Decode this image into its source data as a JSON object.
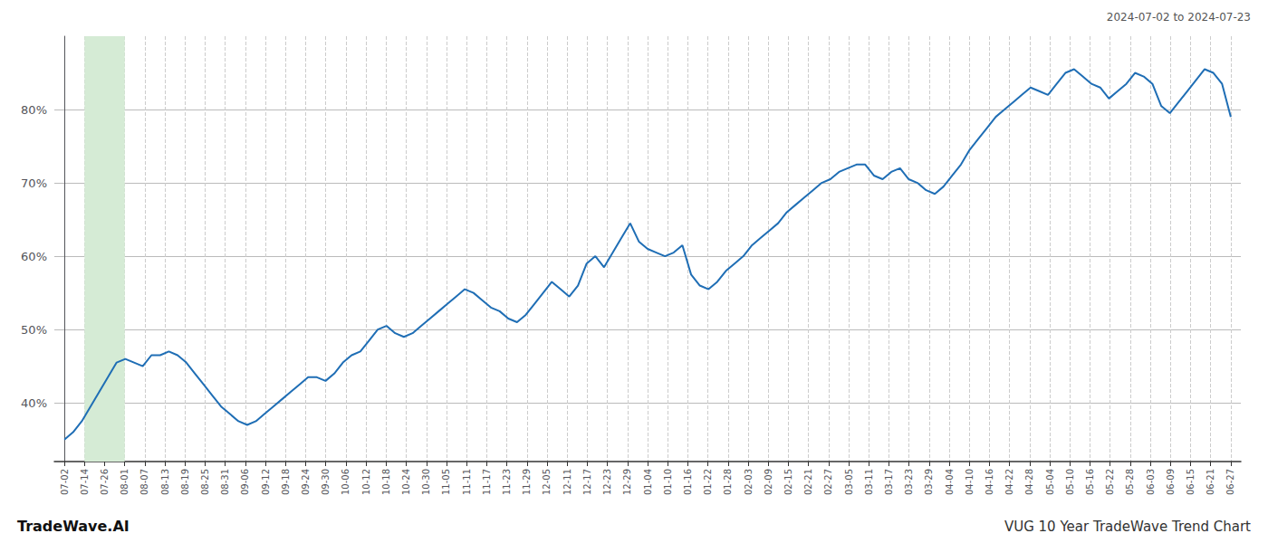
{
  "chart_data": {
    "type": "line",
    "title": "VUG 10 Year TradeWave Trend Chart",
    "subtitle": "2024-07-02 to 2024-07-23",
    "annotations": [
      "TradeWave.AI"
    ],
    "color": "#1f6eb5",
    "background_color": "#ffffff",
    "grid": true,
    "shade": {
      "from": 1.0,
      "to": 3.0,
      "color": "#d5ebd5"
    },
    "xlim": [
      -0.5,
      58.5
    ],
    "xticks": [
      {
        "value": 0,
        "label": "07-02"
      },
      {
        "value": 1,
        "label": "07-14"
      },
      {
        "value": 2,
        "label": "07-26"
      },
      {
        "value": 3,
        "label": "08-01"
      },
      {
        "value": 4,
        "label": "08-07"
      },
      {
        "value": 5,
        "label": "08-13"
      },
      {
        "value": 6,
        "label": "08-19"
      },
      {
        "value": 7,
        "label": "08-25"
      },
      {
        "value": 8,
        "label": "08-31"
      },
      {
        "value": 9,
        "label": "09-06"
      },
      {
        "value": 10,
        "label": "09-12"
      },
      {
        "value": 11,
        "label": "09-18"
      },
      {
        "value": 12,
        "label": "09-24"
      },
      {
        "value": 13,
        "label": "09-30"
      },
      {
        "value": 14,
        "label": "10-06"
      },
      {
        "value": 15,
        "label": "10-12"
      },
      {
        "value": 16,
        "label": "10-18"
      },
      {
        "value": 17,
        "label": "10-24"
      },
      {
        "value": 18,
        "label": "10-30"
      },
      {
        "value": 19,
        "label": "11-05"
      },
      {
        "value": 20,
        "label": "11-11"
      },
      {
        "value": 21,
        "label": "11-17"
      },
      {
        "value": 22,
        "label": "11-23"
      },
      {
        "value": 23,
        "label": "11-29"
      },
      {
        "value": 24,
        "label": "12-05"
      },
      {
        "value": 25,
        "label": "12-11"
      },
      {
        "value": 26,
        "label": "12-17"
      },
      {
        "value": 27,
        "label": "12-23"
      },
      {
        "value": 28,
        "label": "12-29"
      },
      {
        "value": 29,
        "label": "01-04"
      },
      {
        "value": 30,
        "label": "01-10"
      },
      {
        "value": 31,
        "label": "01-16"
      },
      {
        "value": 32,
        "label": "01-22"
      },
      {
        "value": 33,
        "label": "01-28"
      },
      {
        "value": 34,
        "label": "02-03"
      },
      {
        "value": 35,
        "label": "02-09"
      },
      {
        "value": 36,
        "label": "02-15"
      },
      {
        "value": 37,
        "label": "02-21"
      },
      {
        "value": 38,
        "label": "02-27"
      },
      {
        "value": 39,
        "label": "03-05"
      },
      {
        "value": 40,
        "label": "03-11"
      },
      {
        "value": 41,
        "label": "03-17"
      },
      {
        "value": 42,
        "label": "03-23"
      },
      {
        "value": 43,
        "label": "03-29"
      },
      {
        "value": 44,
        "label": "04-04"
      },
      {
        "value": 45,
        "label": "04-10"
      },
      {
        "value": 46,
        "label": "04-16"
      },
      {
        "value": 47,
        "label": "04-22"
      },
      {
        "value": 48,
        "label": "04-28"
      },
      {
        "value": 49,
        "label": "05-04"
      },
      {
        "value": 50,
        "label": "05-10"
      },
      {
        "value": 51,
        "label": "05-16"
      },
      {
        "value": 52,
        "label": "05-22"
      },
      {
        "value": 53,
        "label": "05-28"
      },
      {
        "value": 54,
        "label": "06-03"
      },
      {
        "value": 55,
        "label": "06-09"
      },
      {
        "value": 56,
        "label": "06-15"
      },
      {
        "value": 57,
        "label": "06-21"
      },
      {
        "value": 58,
        "label": "06-27"
      }
    ],
    "ylim": [
      32,
      90
    ],
    "yticks": [
      {
        "value": 40,
        "label": "40%"
      },
      {
        "value": 50,
        "label": "50%"
      },
      {
        "value": 60,
        "label": "60%"
      },
      {
        "value": 70,
        "label": "70%"
      },
      {
        "value": 80,
        "label": "80%"
      }
    ],
    "x": [
      0,
      0.4328,
      0.8657,
      1.2985,
      1.7313,
      2.1642,
      2.597,
      3.0299,
      3.4627,
      3.8955,
      4.3284,
      4.7612,
      5.194,
      5.6269,
      6.0597,
      6.4925,
      6.9254,
      7.3582,
      7.791,
      8.2239,
      8.6567,
      9.0896,
      9.5224,
      9.9552,
      10.3881,
      10.8209,
      11.2537,
      11.6866,
      12.1194,
      12.5522,
      12.9851,
      13.4179,
      13.8507,
      14.2836,
      14.7164,
      15.1493,
      15.5821,
      16.0149,
      16.4478,
      16.8806,
      17.3134,
      17.7463,
      18.1791,
      18.6119,
      19.0448,
      19.4776,
      19.9104,
      20.3433,
      20.7761,
      21.209,
      21.6418,
      22.0746,
      22.5075,
      22.9403,
      23.3731,
      23.806,
      24.2388,
      24.6716,
      25.1045,
      25.5373,
      25.9701,
      26.403,
      26.8358,
      27.2687,
      27.7015,
      28.1343,
      28.5672,
      29,
      29.4328,
      29.8657,
      30.2985,
      30.7313,
      31.1642,
      31.597,
      32.0299,
      32.4627,
      32.8955,
      33.3284,
      33.7612,
      34.194,
      34.6269,
      35.0597,
      35.4925,
      35.9254,
      36.3582,
      36.791,
      37.2239,
      37.6567,
      38.0896,
      38.5224,
      38.9552,
      39.3881,
      39.8209,
      40.2537,
      40.6866,
      41.1194,
      41.5522,
      41.9851,
      42.4179,
      42.8507,
      43.2836,
      43.7164,
      44.1493,
      44.5821,
      45.0149,
      45.4478,
      45.8806,
      46.3134,
      46.7463,
      47.1791,
      47.6119,
      48.0448,
      48.4776,
      48.9104,
      49.3433,
      49.7761,
      50.209,
      50.6418,
      51.0746,
      51.5075,
      51.9403,
      52.3731,
      52.806,
      53.2388,
      53.6716,
      54.1045,
      54.5373,
      54.9701,
      55.403,
      55.8358,
      56.2687,
      56.7015,
      57.1343,
      57.5672,
      58
    ],
    "values": [
      35.0,
      36.0,
      37.5,
      39.5,
      41.5,
      43.5,
      45.5,
      46.0,
      45.5,
      45.0,
      46.5,
      46.5,
      47.0,
      46.5,
      45.5,
      44.0,
      42.5,
      41.0,
      39.5,
      38.5,
      37.5,
      37.0,
      37.5,
      38.5,
      39.5,
      40.5,
      41.5,
      42.5,
      43.5,
      43.5,
      43.0,
      44.0,
      45.5,
      46.5,
      47.0,
      48.5,
      50.0,
      50.5,
      49.5,
      49.0,
      49.5,
      50.5,
      51.5,
      52.5,
      53.5,
      54.5,
      55.5,
      55.0,
      54.0,
      53.0,
      52.5,
      51.5,
      51.0,
      52.0,
      53.5,
      55.0,
      56.5,
      55.5,
      54.5,
      56.0,
      59.0,
      60.0,
      58.5,
      60.5,
      62.5,
      64.5,
      62.0,
      61.0,
      60.5,
      60.0,
      60.5,
      61.5,
      57.5,
      56.0,
      55.5,
      56.5,
      58.0,
      59.0,
      60.0,
      61.5,
      62.5,
      63.5,
      64.5,
      66.0,
      67.0,
      68.0,
      69.0,
      70.0,
      70.5,
      71.5,
      72.0,
      72.5,
      72.5,
      71.0,
      70.5,
      71.5,
      72.0,
      70.5,
      70.0,
      69.0,
      68.5,
      69.5,
      71.0,
      72.5,
      74.5,
      76.0,
      77.5,
      79.0,
      80.0,
      81.0,
      82.0,
      83.0,
      82.5,
      82.0,
      83.5,
      85.0,
      85.5,
      84.5,
      83.5,
      83.0,
      81.5,
      82.5,
      83.5,
      85.0,
      84.5,
      83.5,
      80.5,
      79.5,
      81.0,
      82.5,
      84.0,
      85.5,
      85.0,
      83.5,
      79.0
    ]
  }
}
